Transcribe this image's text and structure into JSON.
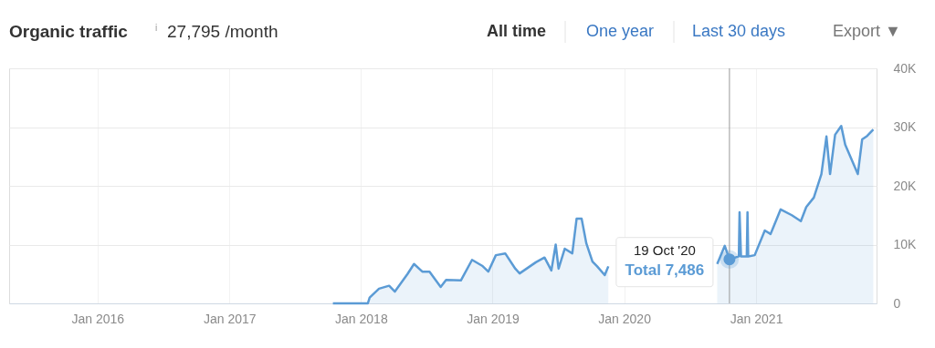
{
  "chart_data": {
    "type": "area",
    "title": "Organic traffic",
    "subtitle": "27,795 /month",
    "annotations": [
      "i",
      "All time",
      "One year",
      "Last 30 days",
      "Export ▼",
      "19 Oct '20",
      "Total 7,486"
    ],
    "x": [
      "2017-10-15",
      "2018-01-20",
      "2018-01-25",
      "2018-02-20",
      "2018-03-20",
      "2018-04-05",
      "2018-05-10",
      "2018-05-28",
      "2018-06-20",
      "2018-07-10",
      "2018-08-10",
      "2018-08-25",
      "2018-10-05",
      "2018-11-05",
      "2018-12-03",
      "2018-12-20",
      "2019-01-10",
      "2019-02-05",
      "2019-03-05",
      "2019-03-17",
      "2019-05-01",
      "2019-05-25",
      "2019-06-13",
      "2019-06-25",
      "2019-07-03",
      "2019-07-20",
      "2019-08-10",
      "2019-08-22",
      "2019-09-05",
      "2019-09-18",
      "2019-10-05",
      "2019-10-18",
      "2019-11-08",
      "2019-11-18",
      "2020-03-01",
      "2020-09-15",
      "2020-10-06",
      "2020-10-19",
      "2020-11-14",
      "2020-11-16",
      "2020-11-20",
      "2020-12-06",
      "2020-12-08",
      "2020-12-10",
      "2020-12-28",
      "2021-01-25",
      "2021-02-10",
      "2021-03-10",
      "2021-04-10",
      "2021-05-05",
      "2021-05-20",
      "2021-06-10",
      "2021-07-01",
      "2021-07-15",
      "2021-07-25",
      "2021-08-08",
      "2021-08-25",
      "2021-09-05",
      "2021-10-10",
      "2021-10-22",
      "2021-11-05",
      "2021-11-22"
    ],
    "series": [
      {
        "color": "#5b9bd5",
        "values": [
          0,
          0,
          1000,
          2500,
          3000,
          2000,
          5000,
          6700,
          5400,
          5400,
          2800,
          4000,
          3900,
          7400,
          6400,
          5400,
          8200,
          8500,
          5900,
          5100,
          7000,
          7800,
          5600,
          10000,
          5900,
          9300,
          8500,
          14400,
          14400,
          10200,
          7100,
          6300,
          4800,
          6300,
          null,
          6700,
          9800,
          7486,
          8000,
          15500,
          8000,
          8000,
          15500,
          8000,
          8200,
          12400,
          11800,
          16000,
          15000,
          14000,
          16400,
          18000,
          22000,
          28400,
          22000,
          28700,
          30200,
          27000,
          22000,
          27900,
          28500,
          29600
        ]
      }
    ],
    "xlim": [
      "2015-05-01",
      "2021-12-01"
    ],
    "xticks": [
      {
        "value": "2016-01-01",
        "label": "Jan 2016"
      },
      {
        "value": "2017-01-01",
        "label": "Jan 2017"
      },
      {
        "value": "2018-01-01",
        "label": "Jan 2018"
      },
      {
        "value": "2019-01-01",
        "label": "Jan 2019"
      },
      {
        "value": "2020-01-01",
        "label": "Jan 2020"
      },
      {
        "value": "2021-01-01",
        "label": "Jan 2021"
      }
    ],
    "ylim": [
      0,
      40000
    ],
    "yticks": [
      0,
      {
        "value": 10000,
        "label": "10K"
      },
      {
        "value": 20000,
        "label": "20K"
      },
      {
        "value": 30000,
        "label": "30K"
      },
      {
        "value": 40000,
        "label": "40K"
      }
    ],
    "ref_lines": [
      {
        "axis": "x",
        "value": "2020-10-19",
        "label": null,
        "color": "#999999"
      }
    ],
    "grid": true
  }
}
